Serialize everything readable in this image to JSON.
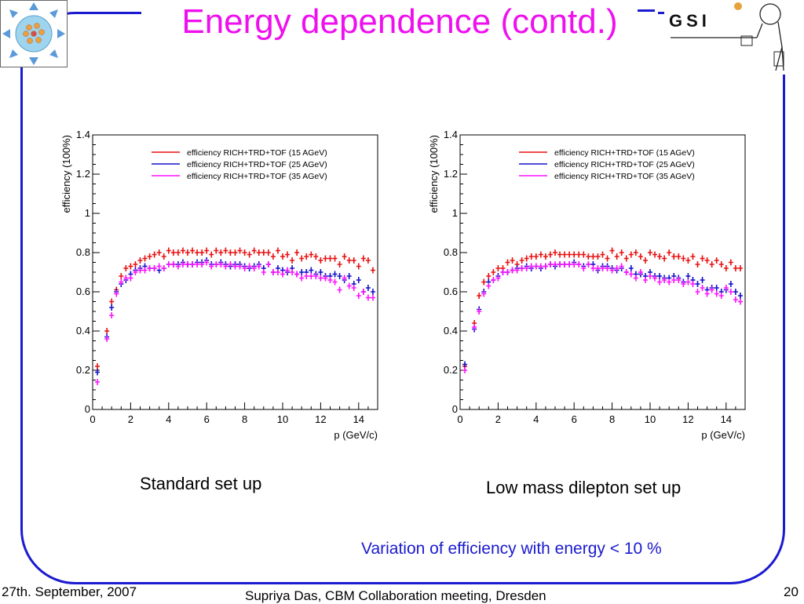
{
  "slide": {
    "title": "Energy dependence (contd.)",
    "captions": {
      "left": "Standard set up",
      "right": "Low mass dilepton set up"
    },
    "note": "Variation of efficiency with energy < 10 %",
    "footer": {
      "date": "27th. September, 2007",
      "author": "Supriya Das, CBM Collaboration meeting, Dresden",
      "page": "20"
    },
    "logo_right_text": "GSI"
  },
  "colors": {
    "title": "#ee10ee",
    "frame": "#1a1ad0",
    "note": "#1a1ad0",
    "s15": "#e81010",
    "s25": "#1010c8",
    "s35": "#ff10ff"
  },
  "chart_data": [
    {
      "type": "scatter",
      "xlabel": "p (GeV/c)",
      "ylabel": "efficiency (100%)",
      "xlim": [
        0,
        15
      ],
      "ylim": [
        0,
        1.4
      ],
      "xticks": [
        "0",
        "2",
        "4",
        "6",
        "8",
        "10",
        "12",
        "14"
      ],
      "yticks": [
        "0",
        "0.2",
        "0.4",
        "0.6",
        "0.8",
        "1",
        "1.2",
        "1.4"
      ],
      "legend_position": "top-right",
      "x": [
        0.25,
        0.75,
        1.0,
        1.25,
        1.5,
        1.75,
        2.0,
        2.25,
        2.5,
        2.75,
        3.0,
        3.25,
        3.5,
        3.75,
        4.0,
        4.25,
        4.5,
        4.75,
        5.0,
        5.25,
        5.5,
        5.75,
        6.0,
        6.25,
        6.5,
        6.75,
        7.0,
        7.25,
        7.5,
        7.75,
        8.0,
        8.25,
        8.5,
        8.75,
        9.0,
        9.25,
        9.5,
        9.75,
        10.0,
        10.25,
        10.5,
        10.75,
        11.0,
        11.25,
        11.5,
        11.75,
        12.0,
        12.25,
        12.5,
        12.75,
        13.0,
        13.25,
        13.5,
        13.75,
        14.0,
        14.25,
        14.5,
        14.75
      ],
      "series": [
        {
          "name": "efficiency RICH+TRD+TOF (15 AGeV)",
          "color": "#e81010",
          "y": [
            0.22,
            0.4,
            0.55,
            0.61,
            0.68,
            0.72,
            0.73,
            0.74,
            0.76,
            0.77,
            0.78,
            0.79,
            0.8,
            0.78,
            0.81,
            0.8,
            0.8,
            0.81,
            0.8,
            0.81,
            0.8,
            0.8,
            0.81,
            0.79,
            0.81,
            0.8,
            0.81,
            0.8,
            0.8,
            0.81,
            0.8,
            0.79,
            0.81,
            0.8,
            0.8,
            0.8,
            0.78,
            0.81,
            0.78,
            0.79,
            0.76,
            0.8,
            0.77,
            0.78,
            0.79,
            0.78,
            0.76,
            0.77,
            0.77,
            0.77,
            0.74,
            0.78,
            0.76,
            0.76,
            0.73,
            0.77,
            0.76,
            0.71
          ]
        },
        {
          "name": "efficiency RICH+TRD+TOF (25 AGeV)",
          "color": "#1010c8",
          "y": [
            0.19,
            0.37,
            0.52,
            0.6,
            0.64,
            0.66,
            0.69,
            0.71,
            0.72,
            0.73,
            0.72,
            0.72,
            0.71,
            0.72,
            0.74,
            0.74,
            0.74,
            0.75,
            0.74,
            0.74,
            0.75,
            0.75,
            0.76,
            0.74,
            0.74,
            0.75,
            0.74,
            0.73,
            0.74,
            0.74,
            0.73,
            0.72,
            0.73,
            0.74,
            0.72,
            0.74,
            0.7,
            0.72,
            0.71,
            0.7,
            0.72,
            0.69,
            0.7,
            0.7,
            0.71,
            0.69,
            0.7,
            0.68,
            0.68,
            0.69,
            0.68,
            0.66,
            0.68,
            0.64,
            0.66,
            0.6,
            0.62,
            0.6
          ]
        },
        {
          "name": "efficiency RICH+TRD+TOF (35 AGeV)",
          "color": "#ff10ff",
          "y": [
            0.14,
            0.36,
            0.48,
            0.59,
            0.65,
            0.67,
            0.67,
            0.7,
            0.71,
            0.71,
            0.72,
            0.72,
            0.73,
            0.72,
            0.74,
            0.74,
            0.73,
            0.74,
            0.74,
            0.74,
            0.74,
            0.74,
            0.75,
            0.73,
            0.74,
            0.74,
            0.73,
            0.74,
            0.73,
            0.73,
            0.72,
            0.73,
            0.72,
            0.73,
            0.7,
            0.74,
            0.7,
            0.7,
            0.69,
            0.71,
            0.7,
            0.69,
            0.67,
            0.68,
            0.68,
            0.68,
            0.67,
            0.67,
            0.66,
            0.65,
            0.61,
            0.67,
            0.63,
            0.62,
            0.58,
            0.6,
            0.57,
            0.57
          ]
        }
      ]
    },
    {
      "type": "scatter",
      "xlabel": "p (GeV/c)",
      "ylabel": "efficiency (100%)",
      "xlim": [
        0,
        15
      ],
      "ylim": [
        0,
        1.4
      ],
      "xticks": [
        "0",
        "2",
        "4",
        "6",
        "8",
        "10",
        "12",
        "14"
      ],
      "yticks": [
        "0",
        "0.2",
        "0.4",
        "0.6",
        "0.8",
        "1",
        "1.2",
        "1.4"
      ],
      "legend_position": "top-right",
      "x": [
        0.25,
        0.75,
        1.0,
        1.25,
        1.5,
        1.75,
        2.0,
        2.25,
        2.5,
        2.75,
        3.0,
        3.25,
        3.5,
        3.75,
        4.0,
        4.25,
        4.5,
        4.75,
        5.0,
        5.25,
        5.5,
        5.75,
        6.0,
        6.25,
        6.5,
        6.75,
        7.0,
        7.25,
        7.5,
        7.75,
        8.0,
        8.25,
        8.5,
        8.75,
        9.0,
        9.25,
        9.5,
        9.75,
        10.0,
        10.25,
        10.5,
        10.75,
        11.0,
        11.25,
        11.5,
        11.75,
        12.0,
        12.25,
        12.5,
        12.75,
        13.0,
        13.25,
        13.5,
        13.75,
        14.0,
        14.25,
        14.5,
        14.75
      ],
      "series": [
        {
          "name": "efficiency RICH+TRD+TOF (15 AGeV)",
          "color": "#e81010",
          "y": [
            0.22,
            0.44,
            0.58,
            0.65,
            0.68,
            0.7,
            0.72,
            0.72,
            0.75,
            0.76,
            0.74,
            0.76,
            0.77,
            0.78,
            0.78,
            0.79,
            0.78,
            0.79,
            0.8,
            0.79,
            0.79,
            0.79,
            0.79,
            0.79,
            0.79,
            0.78,
            0.78,
            0.78,
            0.79,
            0.77,
            0.81,
            0.78,
            0.8,
            0.77,
            0.79,
            0.8,
            0.78,
            0.76,
            0.8,
            0.79,
            0.78,
            0.77,
            0.8,
            0.78,
            0.78,
            0.77,
            0.76,
            0.78,
            0.74,
            0.77,
            0.76,
            0.74,
            0.76,
            0.74,
            0.72,
            0.75,
            0.72,
            0.72
          ]
        },
        {
          "name": "efficiency RICH+TRD+TOF (25 AGeV)",
          "color": "#1010c8",
          "y": [
            0.23,
            0.41,
            0.51,
            0.6,
            0.65,
            0.66,
            0.68,
            0.7,
            0.7,
            0.71,
            0.72,
            0.72,
            0.73,
            0.72,
            0.73,
            0.72,
            0.73,
            0.74,
            0.73,
            0.74,
            0.74,
            0.74,
            0.75,
            0.74,
            0.73,
            0.74,
            0.74,
            0.71,
            0.73,
            0.73,
            0.72,
            0.71,
            0.72,
            0.7,
            0.72,
            0.69,
            0.69,
            0.68,
            0.7,
            0.68,
            0.68,
            0.67,
            0.67,
            0.68,
            0.67,
            0.65,
            0.68,
            0.66,
            0.64,
            0.66,
            0.61,
            0.62,
            0.62,
            0.6,
            0.61,
            0.64,
            0.6,
            0.58
          ]
        },
        {
          "name": "efficiency RICH+TRD+TOF (35 AGeV)",
          "color": "#ff10ff",
          "y": [
            0.2,
            0.42,
            0.5,
            0.59,
            0.63,
            0.66,
            0.67,
            0.7,
            0.7,
            0.71,
            0.71,
            0.72,
            0.72,
            0.73,
            0.73,
            0.73,
            0.73,
            0.74,
            0.74,
            0.74,
            0.74,
            0.74,
            0.74,
            0.74,
            0.72,
            0.74,
            0.72,
            0.72,
            0.72,
            0.72,
            0.71,
            0.72,
            0.73,
            0.7,
            0.69,
            0.67,
            0.7,
            0.66,
            0.68,
            0.67,
            0.65,
            0.66,
            0.65,
            0.66,
            0.66,
            0.64,
            0.65,
            0.64,
            0.6,
            0.62,
            0.59,
            0.61,
            0.59,
            0.58,
            0.62,
            0.6,
            0.56,
            0.55
          ]
        }
      ]
    }
  ]
}
